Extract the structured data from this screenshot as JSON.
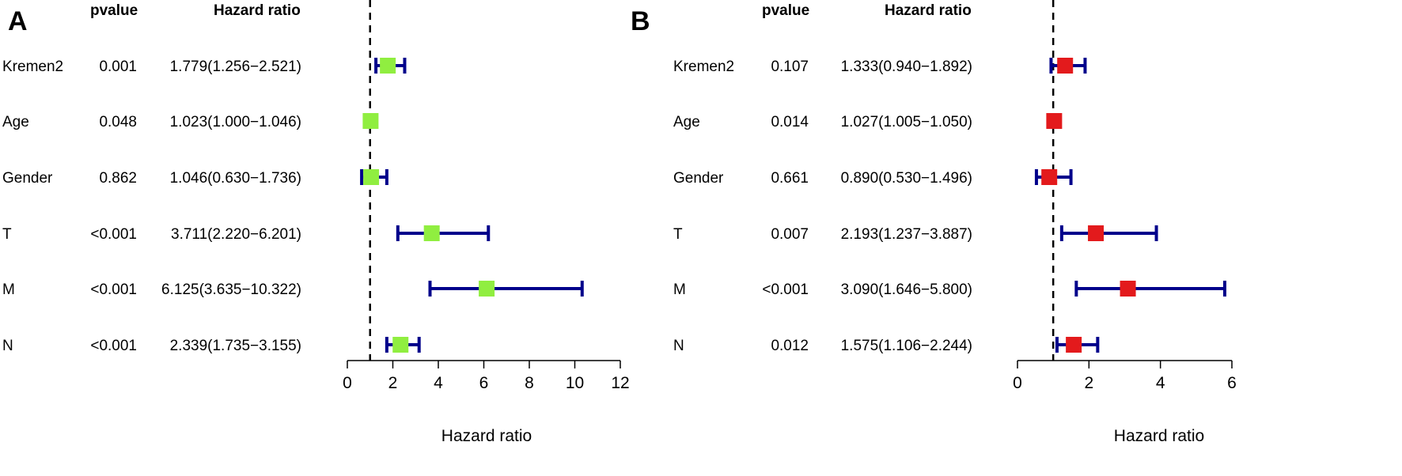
{
  "chart_data": [
    {
      "type": "forest",
      "panel": "A",
      "headers": {
        "pvalue": "pvalue",
        "hr": "Hazard ratio"
      },
      "xlabel": "Hazard ratio",
      "xlim": [
        0,
        12
      ],
      "ticks": [
        "0",
        "2",
        "4",
        "6",
        "8",
        "10",
        "12"
      ],
      "reference": 1,
      "box_color": "#90EE40",
      "whisker_color": "#00008B",
      "rows": [
        {
          "label": "Kremen2",
          "pvalue": "0.001",
          "hr_text": "1.779(1.256−2.521)",
          "hr": 1.779,
          "low": 1.256,
          "high": 2.521
        },
        {
          "label": "Age",
          "pvalue": "0.048",
          "hr_text": "1.023(1.000−1.046)",
          "hr": 1.023,
          "low": 1.0,
          "high": 1.046
        },
        {
          "label": "Gender",
          "pvalue": "0.862",
          "hr_text": "1.046(0.630−1.736)",
          "hr": 1.046,
          "low": 0.63,
          "high": 1.736
        },
        {
          "label": "T",
          "pvalue": "<0.001",
          "hr_text": "3.711(2.220−6.201)",
          "hr": 3.711,
          "low": 2.22,
          "high": 6.201
        },
        {
          "label": "M",
          "pvalue": "<0.001",
          "hr_text": "6.125(3.635−10.322)",
          "hr": 6.125,
          "low": 3.635,
          "high": 10.322
        },
        {
          "label": "N",
          "pvalue": "<0.001",
          "hr_text": "2.339(1.735−3.155)",
          "hr": 2.339,
          "low": 1.735,
          "high": 3.155
        }
      ]
    },
    {
      "type": "forest",
      "panel": "B",
      "headers": {
        "pvalue": "pvalue",
        "hr": "Hazard ratio"
      },
      "xlabel": "Hazard ratio",
      "xlim": [
        0,
        6
      ],
      "ticks": [
        "0",
        "2",
        "4",
        "6"
      ],
      "reference": 1,
      "box_color": "#E31A1C",
      "whisker_color": "#00008B",
      "rows": [
        {
          "label": "Kremen2",
          "pvalue": "0.107",
          "hr_text": "1.333(0.940−1.892)",
          "hr": 1.333,
          "low": 0.94,
          "high": 1.892
        },
        {
          "label": "Age",
          "pvalue": "0.014",
          "hr_text": "1.027(1.005−1.050)",
          "hr": 1.027,
          "low": 1.005,
          "high": 1.05
        },
        {
          "label": "Gender",
          "pvalue": "0.661",
          "hr_text": "0.890(0.530−1.496)",
          "hr": 0.89,
          "low": 0.53,
          "high": 1.496
        },
        {
          "label": "T",
          "pvalue": "0.007",
          "hr_text": "2.193(1.237−3.887)",
          "hr": 2.193,
          "low": 1.237,
          "high": 3.887
        },
        {
          "label": "M",
          "pvalue": "<0.001",
          "hr_text": "3.090(1.646−5.800)",
          "hr": 3.09,
          "low": 1.646,
          "high": 5.8
        },
        {
          "label": "N",
          "pvalue": "0.012",
          "hr_text": "1.575(1.106−2.244)",
          "hr": 1.575,
          "low": 1.106,
          "high": 2.244
        }
      ]
    }
  ]
}
